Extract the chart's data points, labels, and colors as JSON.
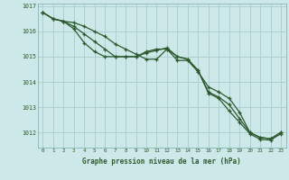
{
  "title": "Graphe pression niveau de la mer (hPa)",
  "background_color": "#cce8e8",
  "grid_color": "#aacccc",
  "line_color": "#2d5a2d",
  "xlim": [
    -0.5,
    23.5
  ],
  "ylim": [
    1011.4,
    1017.1
  ],
  "yticks": [
    1012,
    1013,
    1014,
    1015,
    1016,
    1017
  ],
  "xticks": [
    0,
    1,
    2,
    3,
    4,
    5,
    6,
    7,
    8,
    9,
    10,
    11,
    12,
    13,
    14,
    15,
    16,
    17,
    18,
    19,
    20,
    21,
    22,
    23
  ],
  "series1": [
    1016.75,
    1016.5,
    1016.4,
    1016.35,
    1016.2,
    1016.0,
    1015.8,
    1015.5,
    1015.3,
    1015.1,
    1014.9,
    1014.9,
    1015.3,
    1014.85,
    1014.85,
    1014.4,
    1013.8,
    1013.6,
    1013.35,
    1012.8,
    1012.0,
    1011.8,
    1011.75,
    1012.0
  ],
  "series2": [
    1016.75,
    1016.5,
    1016.4,
    1016.2,
    1015.9,
    1015.6,
    1015.3,
    1015.0,
    1015.0,
    1015.0,
    1015.15,
    1015.25,
    1015.35,
    1015.0,
    1014.9,
    1014.45,
    1013.6,
    1013.4,
    1013.1,
    1012.55,
    1012.0,
    1011.8,
    1011.75,
    1012.0
  ],
  "series3": [
    1016.75,
    1016.5,
    1016.4,
    1016.1,
    1015.55,
    1015.2,
    1015.0,
    1015.0,
    1015.0,
    1015.0,
    1015.2,
    1015.3,
    1015.3,
    1015.0,
    1014.9,
    1014.45,
    1013.55,
    1013.35,
    1012.85,
    1012.4,
    1011.95,
    1011.72,
    1011.7,
    1011.95
  ]
}
